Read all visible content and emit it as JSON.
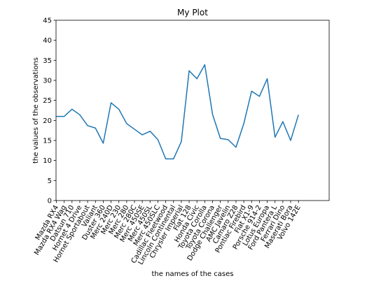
{
  "chart_data": {
    "type": "line",
    "title": "My Plot",
    "xlabel": "the names of the cases",
    "ylabel": "the values of the observations",
    "ylim": [
      0,
      45
    ],
    "yticks": [
      0,
      5,
      10,
      15,
      20,
      25,
      30,
      35,
      40,
      45
    ],
    "grid": false,
    "line_color": "#1f77b4",
    "categories": [
      "Mazda RX4",
      "Mazda RX4 Wag",
      "Datsun 710",
      "Hornet 4 Drive",
      "Hornet Sportabout",
      "Valiant",
      "Duster 360",
      "Merc 240D",
      "Merc 230",
      "Merc 280",
      "Merc 280C",
      "Merc 450SE",
      "Merc 450SL",
      "Merc 450SLC",
      "Cadillac Fleetwood",
      "Lincoln Continental",
      "Chrysler Imperial",
      "Fiat 128",
      "Honda Civic",
      "Toyota Corolla",
      "Toyota Corona",
      "Dodge Challenger",
      "AMC Javelin",
      "Camaro Z28",
      "Pontiac Firebird",
      "Fiat X1-9",
      "Porsche 914-2",
      "Lotus Europa",
      "Ford Pantera L",
      "Ferrari Dino",
      "Maserati Bora",
      "Volvo 142E"
    ],
    "series": [
      {
        "values": [
          21.0,
          21.0,
          22.8,
          21.4,
          18.7,
          18.1,
          14.3,
          24.4,
          22.8,
          19.2,
          17.8,
          16.4,
          17.3,
          15.2,
          10.4,
          10.4,
          14.7,
          32.4,
          30.4,
          33.9,
          21.5,
          15.5,
          15.2,
          13.3,
          19.2,
          27.3,
          26.0,
          30.4,
          15.8,
          19.7,
          15.0,
          21.4
        ]
      }
    ]
  }
}
